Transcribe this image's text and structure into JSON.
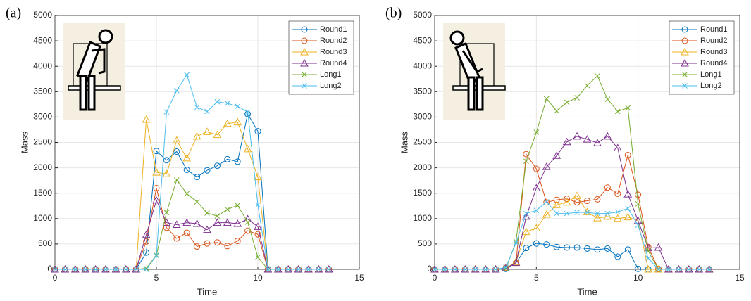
{
  "chart_data": [
    {
      "type": "line",
      "label": "(a)",
      "xlabel": "Time",
      "ylabel": "Mass",
      "xlim": [
        0,
        15
      ],
      "ylim": [
        0,
        5000
      ],
      "xticks": [
        0,
        5,
        10,
        15
      ],
      "yticks": [
        0,
        500,
        1000,
        1500,
        2000,
        2500,
        3000,
        3500,
        4000,
        4500,
        5000
      ],
      "grid": true,
      "legend": "upper right",
      "x": [
        0,
        0.5,
        1,
        1.5,
        2,
        2.5,
        3,
        3.5,
        4,
        4.5,
        5,
        5.5,
        6,
        6.5,
        7,
        7.5,
        8,
        8.5,
        9,
        9.5,
        10,
        10.5,
        11,
        11.5,
        12,
        12.5,
        13,
        13.5
      ],
      "series": [
        {
          "name": "Round1",
          "color": "#0072BD",
          "marker": "circle",
          "values": [
            0,
            0,
            0,
            0,
            0,
            0,
            0,
            0,
            0,
            330,
            2330,
            2150,
            2320,
            1960,
            1820,
            1950,
            2040,
            2170,
            2120,
            3060,
            2720,
            0,
            0,
            0,
            0,
            0,
            0,
            0
          ]
        },
        {
          "name": "Round2",
          "color": "#D95319",
          "marker": "circle",
          "values": [
            0,
            0,
            0,
            0,
            0,
            0,
            0,
            0,
            0,
            550,
            1600,
            820,
            610,
            720,
            450,
            510,
            530,
            460,
            560,
            760,
            690,
            0,
            0,
            0,
            0,
            0,
            0,
            0
          ]
        },
        {
          "name": "Round3",
          "color": "#EDB120",
          "marker": "triangle",
          "values": [
            0,
            0,
            0,
            0,
            0,
            0,
            0,
            0,
            0,
            2950,
            1910,
            1880,
            2540,
            2190,
            2620,
            2710,
            2650,
            2870,
            2900,
            2370,
            1820,
            0,
            0,
            0,
            0,
            0,
            0,
            0
          ]
        },
        {
          "name": "Round4",
          "color": "#7E2F8E",
          "marker": "triangle",
          "values": [
            0,
            0,
            0,
            0,
            0,
            0,
            0,
            0,
            0,
            680,
            1360,
            920,
            880,
            920,
            900,
            780,
            920,
            920,
            900,
            990,
            840,
            0,
            0,
            0,
            0,
            0,
            0,
            0
          ]
        },
        {
          "name": "Long1",
          "color": "#77AC30",
          "marker": "x",
          "values": [
            0,
            0,
            0,
            0,
            0,
            0,
            0,
            0,
            0,
            20,
            280,
            1120,
            1760,
            1490,
            1330,
            1110,
            1050,
            1180,
            1260,
            930,
            240,
            0,
            0,
            0,
            0,
            0,
            0,
            0
          ]
        },
        {
          "name": "Long2",
          "color": "#4DBEEE",
          "marker": "x",
          "values": [
            0,
            0,
            0,
            0,
            0,
            0,
            0,
            0,
            0,
            0,
            270,
            3100,
            3520,
            3830,
            3190,
            3110,
            3300,
            3270,
            3210,
            3100,
            1270,
            0,
            0,
            0,
            0,
            0,
            0,
            0
          ]
        }
      ]
    },
    {
      "type": "line",
      "label": "(b)",
      "xlabel": "Time",
      "ylabel": "Mass",
      "xlim": [
        0,
        15
      ],
      "ylim": [
        0,
        5000
      ],
      "xticks": [
        0,
        5,
        10,
        15
      ],
      "yticks": [
        0,
        500,
        1000,
        1500,
        2000,
        2500,
        3000,
        3500,
        4000,
        4500,
        5000
      ],
      "grid": true,
      "legend": "upper right",
      "x": [
        0,
        0.5,
        1,
        1.5,
        2,
        2.5,
        3,
        3.5,
        4,
        4.5,
        5,
        5.5,
        6,
        6.5,
        7,
        7.5,
        8,
        8.5,
        9,
        9.5,
        10,
        10.5,
        11,
        11.5,
        12,
        12.5,
        13,
        13.5
      ],
      "series": [
        {
          "name": "Round1",
          "color": "#0072BD",
          "marker": "circle",
          "values": [
            0,
            0,
            0,
            0,
            0,
            0,
            0,
            10,
            130,
            420,
            510,
            490,
            440,
            430,
            430,
            410,
            390,
            410,
            250,
            390,
            10,
            0,
            0,
            0,
            0,
            0,
            0,
            0
          ]
        },
        {
          "name": "Round2",
          "color": "#D95319",
          "marker": "circle",
          "values": [
            0,
            0,
            0,
            0,
            0,
            0,
            0,
            30,
            130,
            2270,
            1980,
            1320,
            1370,
            1390,
            1320,
            1350,
            1380,
            1610,
            1490,
            2250,
            1470,
            440,
            10,
            0,
            0,
            0,
            0,
            0
          ]
        },
        {
          "name": "Round3",
          "color": "#EDB120",
          "marker": "triangle",
          "values": [
            0,
            0,
            0,
            0,
            0,
            0,
            0,
            20,
            150,
            740,
            810,
            1080,
            1270,
            1320,
            1450,
            1130,
            1010,
            1040,
            1000,
            1030,
            960,
            0,
            0,
            0,
            0,
            0,
            0,
            0
          ]
        },
        {
          "name": "Round4",
          "color": "#7E2F8E",
          "marker": "triangle",
          "values": [
            0,
            0,
            0,
            0,
            0,
            0,
            0,
            20,
            130,
            1040,
            1600,
            2020,
            2240,
            2510,
            2620,
            2560,
            2490,
            2620,
            2390,
            1480,
            960,
            420,
            430,
            0,
            0,
            0,
            0,
            0
          ]
        },
        {
          "name": "Long1",
          "color": "#77AC30",
          "marker": "x",
          "values": [
            0,
            0,
            0,
            0,
            0,
            0,
            0,
            10,
            550,
            2130,
            2700,
            3360,
            3120,
            3290,
            3380,
            3620,
            3810,
            3350,
            3110,
            3180,
            1290,
            360,
            0,
            0,
            0,
            0,
            0,
            0
          ]
        },
        {
          "name": "Long2",
          "color": "#4DBEEE",
          "marker": "x",
          "values": [
            0,
            0,
            0,
            0,
            0,
            0,
            0,
            40,
            520,
            1100,
            1160,
            1330,
            1100,
            1100,
            1120,
            1120,
            1100,
            1100,
            1130,
            1200,
            870,
            220,
            0,
            0,
            0,
            0,
            0,
            0
          ]
        }
      ]
    }
  ]
}
